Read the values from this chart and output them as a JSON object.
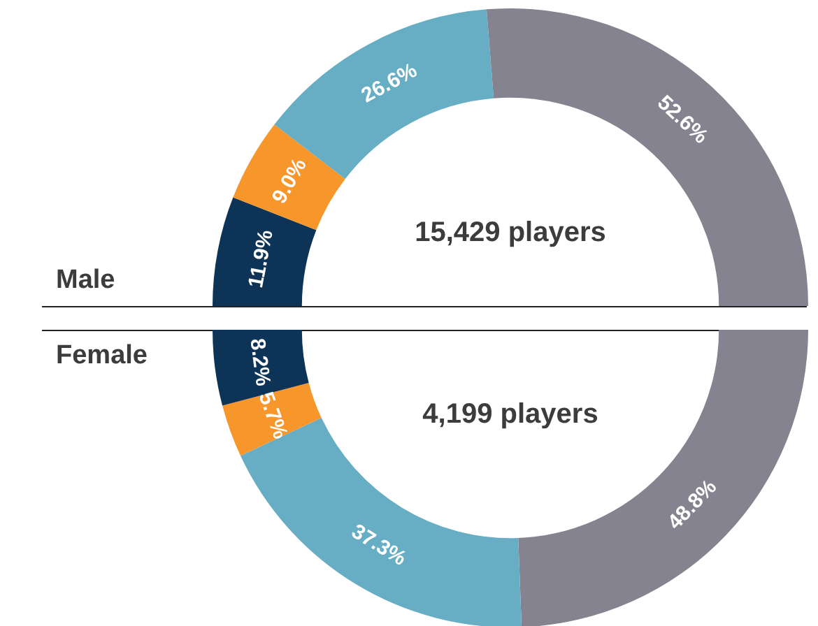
{
  "chart_data": [
    {
      "type": "donut",
      "title": "Male",
      "categories": [
        null,
        null,
        null,
        null
      ],
      "values": [
        11.9,
        9.0,
        26.6,
        52.6
      ],
      "value_labels": [
        "11.9%",
        "9.0%",
        "26.6%",
        "52.6%"
      ],
      "colors": [
        "#0d3457",
        "#f7962a",
        "#67adc4",
        "#84838f"
      ],
      "annotations": [
        "15,429 players"
      ]
    },
    {
      "type": "donut",
      "title": "Female",
      "categories": [
        null,
        null,
        null,
        null
      ],
      "values": [
        8.2,
        5.7,
        37.3,
        48.8
      ],
      "value_labels": [
        "8.2%",
        "5.7%",
        "37.3%",
        "48.8%"
      ],
      "colors": [
        "#0d3457",
        "#f7962a",
        "#67adc4",
        "#84838f"
      ],
      "annotations": [
        "4,199 players"
      ]
    }
  ]
}
